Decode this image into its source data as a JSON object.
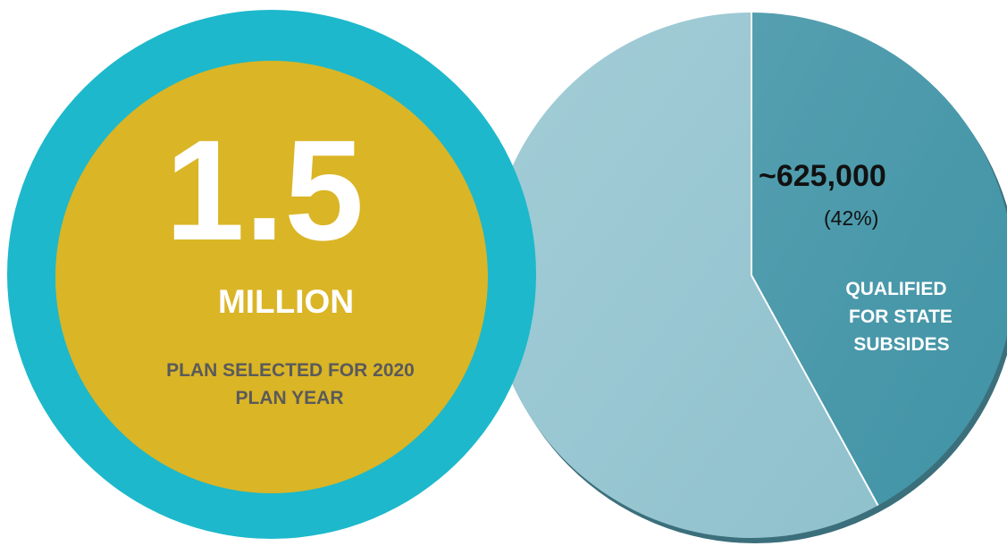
{
  "badge": {
    "big_number": "1.5",
    "unit": "MILLION",
    "caption_line1": "PLAN SELECTED FOR 2020",
    "caption_line2": "PLAN YEAR",
    "outer_color": "#1db8cb",
    "inner_color": "#dab526",
    "number_color": "#ffffff",
    "caption_color": "#5a5a5a"
  },
  "chart_data": {
    "type": "pie",
    "slices": [
      {
        "value": 42,
        "color": "#4a9aab",
        "value_label": "~625,000",
        "percent_label": "(42%)",
        "label_lines": [
          "QUALIFIED",
          "FOR STATE",
          "SUBSIDES"
        ]
      },
      {
        "value": 58,
        "color": "#96c5d0"
      }
    ],
    "shadow_color": "#3b6f7b"
  }
}
